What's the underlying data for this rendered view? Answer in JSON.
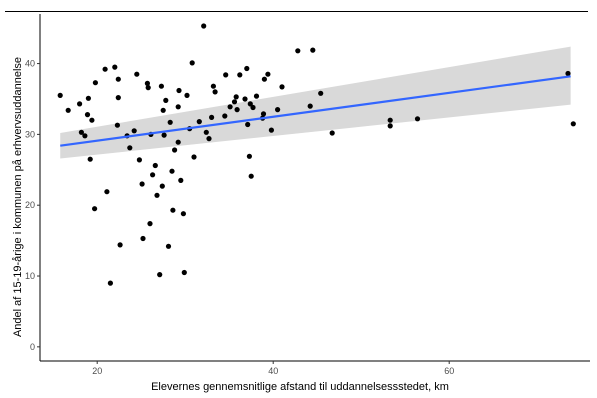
{
  "chart_data": {
    "type": "scatter",
    "title": "",
    "xlabel": "Elevernes gennemsnitlige afstand til uddannelsessstedet, km",
    "ylabel": "Andel af 15-19-årige i kommunen på erhvervsuddannelse",
    "xlim": [
      13.5,
      76
    ],
    "ylim": [
      -2,
      47
    ],
    "x_ticks": [
      20,
      40,
      60
    ],
    "y_ticks": [
      0,
      10,
      20,
      30,
      40
    ],
    "grid": false,
    "legend": "none",
    "colors": {
      "points": "#000000",
      "trend_line": "#3366ff",
      "confidence_band": "#d9d9d9"
    },
    "trend": {
      "x": [
        15.8,
        73.8
      ],
      "y": [
        28.4,
        38.2
      ],
      "ci_lower": [
        26.6,
        34.2
      ],
      "ci_upper": [
        30.2,
        42.4
      ]
    },
    "points": [
      [
        15.8,
        35.5
      ],
      [
        16.7,
        33.4
      ],
      [
        18.2,
        30.3
      ],
      [
        18.0,
        34.3
      ],
      [
        18.6,
        29.8
      ],
      [
        19.0,
        35.1
      ],
      [
        18.9,
        32.8
      ],
      [
        19.4,
        32.0
      ],
      [
        19.2,
        26.5
      ],
      [
        19.8,
        37.3
      ],
      [
        19.7,
        19.5
      ],
      [
        20.9,
        39.2
      ],
      [
        21.1,
        21.9
      ],
      [
        21.5,
        9.0
      ],
      [
        22.0,
        39.5
      ],
      [
        22.3,
        31.3
      ],
      [
        22.4,
        35.2
      ],
      [
        22.4,
        37.8
      ],
      [
        22.6,
        14.4
      ],
      [
        23.4,
        29.8
      ],
      [
        23.7,
        28.1
      ],
      [
        24.2,
        30.5
      ],
      [
        24.5,
        38.5
      ],
      [
        24.8,
        26.4
      ],
      [
        25.1,
        23.0
      ],
      [
        25.2,
        15.3
      ],
      [
        25.7,
        37.2
      ],
      [
        25.8,
        36.6
      ],
      [
        26.0,
        17.4
      ],
      [
        26.1,
        30.0
      ],
      [
        26.3,
        24.3
      ],
      [
        26.6,
        25.6
      ],
      [
        26.8,
        21.4
      ],
      [
        27.1,
        10.2
      ],
      [
        27.3,
        36.8
      ],
      [
        27.4,
        22.7
      ],
      [
        27.6,
        29.9
      ],
      [
        27.5,
        33.4
      ],
      [
        27.8,
        34.8
      ],
      [
        28.1,
        14.2
      ],
      [
        28.3,
        31.7
      ],
      [
        28.5,
        24.8
      ],
      [
        28.6,
        19.3
      ],
      [
        28.8,
        27.8
      ],
      [
        29.2,
        33.9
      ],
      [
        29.3,
        36.2
      ],
      [
        29.2,
        28.9
      ],
      [
        29.5,
        23.5
      ],
      [
        29.8,
        18.8
      ],
      [
        29.9,
        10.5
      ],
      [
        30.2,
        35.5
      ],
      [
        30.5,
        30.8
      ],
      [
        30.8,
        40.1
      ],
      [
        31.0,
        26.8
      ],
      [
        31.6,
        31.8
      ],
      [
        32.1,
        45.3
      ],
      [
        32.4,
        30.3
      ],
      [
        32.7,
        29.4
      ],
      [
        33.0,
        32.4
      ],
      [
        33.2,
        36.8
      ],
      [
        33.4,
        36.0
      ],
      [
        34.5,
        32.6
      ],
      [
        34.6,
        38.4
      ],
      [
        35.1,
        33.9
      ],
      [
        35.6,
        34.6
      ],
      [
        35.8,
        35.3
      ],
      [
        35.9,
        33.5
      ],
      [
        36.2,
        38.4
      ],
      [
        36.8,
        35.0
      ],
      [
        37.0,
        39.3
      ],
      [
        37.1,
        31.4
      ],
      [
        37.3,
        26.9
      ],
      [
        37.5,
        24.1
      ],
      [
        37.4,
        34.3
      ],
      [
        37.7,
        33.8
      ],
      [
        38.1,
        35.4
      ],
      [
        38.8,
        32.3
      ],
      [
        38.9,
        32.9
      ],
      [
        39.0,
        37.8
      ],
      [
        39.4,
        38.5
      ],
      [
        39.8,
        30.6
      ],
      [
        40.5,
        33.5
      ],
      [
        41.0,
        36.7
      ],
      [
        42.8,
        41.8
      ],
      [
        44.2,
        34.0
      ],
      [
        44.5,
        41.9
      ],
      [
        45.4,
        35.8
      ],
      [
        46.7,
        30.2
      ],
      [
        53.3,
        32.0
      ],
      [
        53.3,
        31.2
      ],
      [
        56.4,
        32.2
      ],
      [
        73.5,
        38.6
      ],
      [
        74.1,
        31.5
      ]
    ]
  }
}
